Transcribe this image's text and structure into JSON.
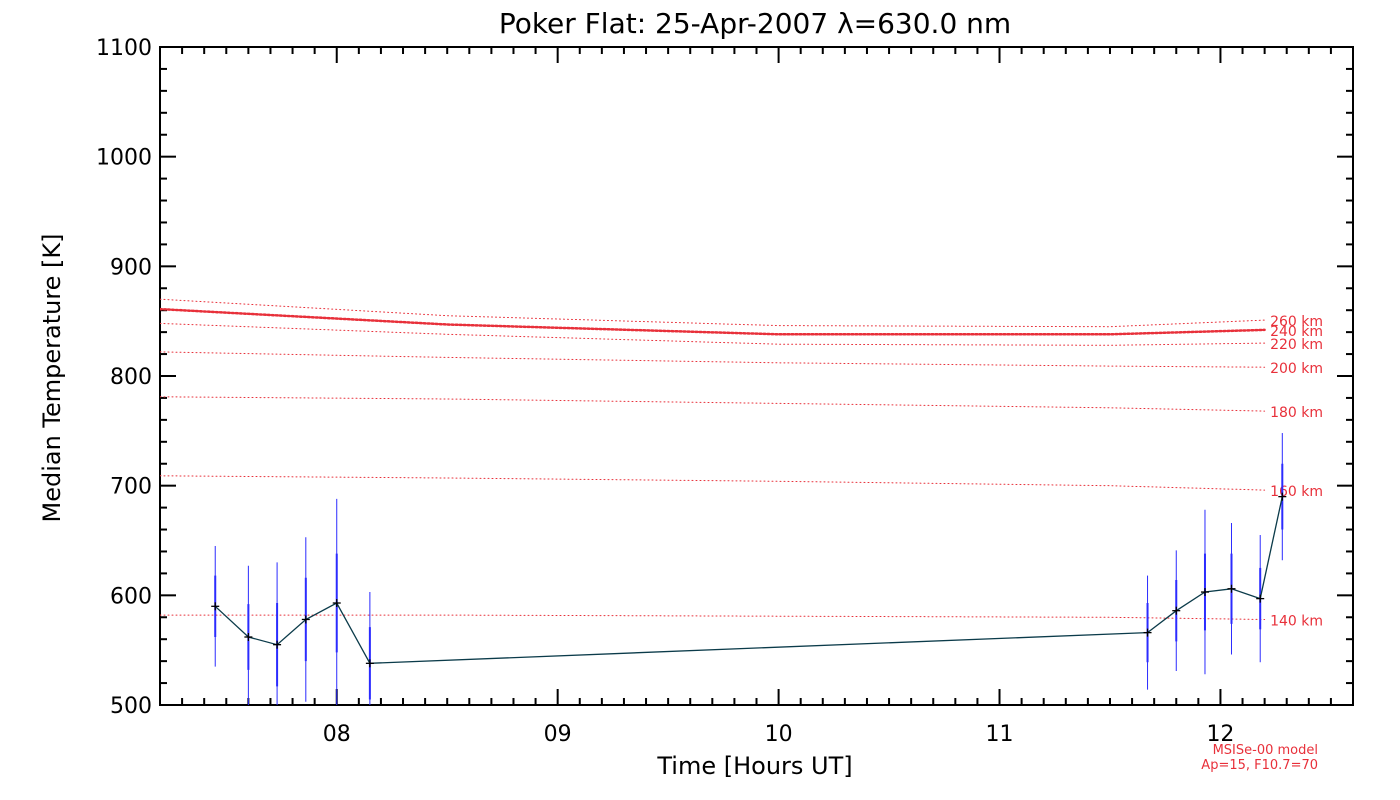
{
  "chart_data": {
    "type": "line",
    "title": "Poker Flat: 25-Apr-2007 λ=630.0 nm",
    "xlabel": "Time [Hours UT]",
    "ylabel": "Median Temperature [K]",
    "xlim": [
      7.2,
      12.6
    ],
    "ylim": [
      500,
      1100
    ],
    "x_ticks": [
      8,
      9,
      10,
      11,
      12
    ],
    "x_tick_labels": [
      "08",
      "09",
      "10",
      "11",
      "12"
    ],
    "y_ticks": [
      500,
      600,
      700,
      800,
      900,
      1000,
      1100
    ],
    "y_tick_labels": [
      "500",
      "600",
      "700",
      "800",
      "900",
      "1000",
      "1100"
    ],
    "measurement": {
      "name": "Median temperature",
      "line_color": "#0b3b4a",
      "error_color": "#2b2bff",
      "x": [
        7.45,
        7.6,
        7.73,
        7.86,
        8.0,
        8.15,
        11.67,
        11.8,
        11.93,
        12.05,
        12.18,
        12.28
      ],
      "y": [
        590,
        562,
        555,
        578,
        593,
        538,
        566,
        586,
        603,
        606,
        597,
        690
      ],
      "err_inner": [
        28,
        30,
        38,
        38,
        45,
        33,
        27,
        28,
        35,
        32,
        28,
        30
      ],
      "err_outer": [
        55,
        65,
        75,
        75,
        95,
        65,
        52,
        55,
        75,
        60,
        58,
        58
      ]
    },
    "model_series": [
      {
        "name": "140 km",
        "label": "140 km",
        "x": [
          7.2,
          8.5,
          10.0,
          11.5,
          12.2
        ],
        "y": [
          582,
          582,
          581,
          580,
          578
        ]
      },
      {
        "name": "160 km",
        "label": "160 km",
        "x": [
          7.2,
          8.5,
          10.0,
          11.5,
          12.2
        ],
        "y": [
          709,
          707,
          704,
          700,
          696
        ]
      },
      {
        "name": "180 km",
        "label": "180 km",
        "x": [
          7.2,
          8.5,
          10.0,
          11.5,
          12.2
        ],
        "y": [
          781,
          779,
          775,
          771,
          768
        ]
      },
      {
        "name": "200 km",
        "label": "200 km",
        "x": [
          7.2,
          8.5,
          10.0,
          11.5,
          12.2
        ],
        "y": [
          822,
          817,
          812,
          809,
          808
        ]
      },
      {
        "name": "220 km",
        "label": "220 km",
        "x": [
          7.2,
          8.5,
          10.0,
          11.5,
          12.2
        ],
        "y": [
          848,
          838,
          829,
          828,
          830
        ]
      },
      {
        "name": "240 km",
        "label": "240 km",
        "x": [
          7.2,
          8.5,
          10.0,
          11.5,
          12.2
        ],
        "y": [
          861,
          847,
          838,
          838,
          842
        ],
        "emphasis": true
      },
      {
        "name": "260 km",
        "label": "260 km",
        "x": [
          7.2,
          8.5,
          10.0,
          11.5,
          12.2
        ],
        "y": [
          870,
          855,
          846,
          845,
          851
        ]
      }
    ],
    "model_color": "#e8303a",
    "model_note": [
      "MSISe-00 model",
      "Ap=15, F10.7=70"
    ]
  }
}
